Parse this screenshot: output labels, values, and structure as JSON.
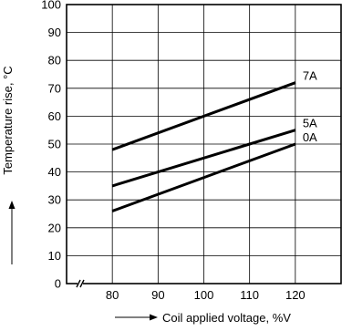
{
  "chart_data": {
    "type": "line",
    "title": "",
    "xlabel": "Coil applied voltage, %V",
    "ylabel": "Temperature rise, °C",
    "xlim": [
      70,
      130
    ],
    "ylim": [
      0,
      100
    ],
    "x_ticks": [
      80,
      90,
      100,
      110,
      120
    ],
    "y_ticks": [
      0,
      10,
      20,
      30,
      40,
      50,
      60,
      70,
      80,
      90,
      100
    ],
    "x_axis_break": true,
    "grid": true,
    "series": [
      {
        "name": "7A",
        "x": [
          80,
          120
        ],
        "y": [
          48,
          72
        ]
      },
      {
        "name": "5A",
        "x": [
          80,
          120
        ],
        "y": [
          35,
          55
        ]
      },
      {
        "name": "0A",
        "x": [
          80,
          120
        ],
        "y": [
          26,
          50
        ]
      }
    ]
  }
}
